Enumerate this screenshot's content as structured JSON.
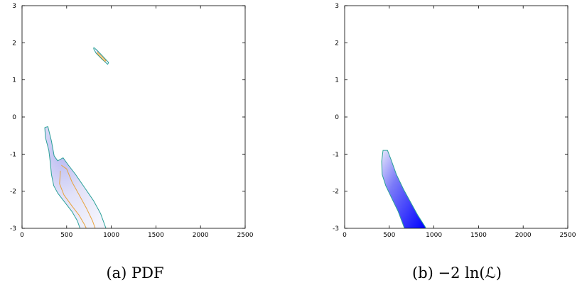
{
  "chart_data": [
    {
      "type": "heatmap",
      "caption": "(a) PDF",
      "xlim": [
        0,
        2500
      ],
      "ylim": [
        -3,
        3
      ],
      "xticks": [
        "0",
        "500",
        "1000",
        "1500",
        "2000",
        "2500"
      ],
      "yticks": [
        "-3",
        "-2",
        "-1",
        "0",
        "1",
        "2",
        "3"
      ],
      "xlabel": "",
      "ylabel": "",
      "regions": [
        {
          "name": "",
          "fill": "#dcdcf6",
          "contours": [
            {
              "color": "#2aa198",
              "points": [
                [
                  255,
                  -0.28
                ],
                [
                  290,
                  -0.26
                ],
                [
                  330,
                  -0.65
                ],
                [
                  360,
                  -1.05
                ],
                [
                  400,
                  -1.18
                ],
                [
                  460,
                  -1.1
                ],
                [
                  520,
                  -1.3
                ],
                [
                  600,
                  -1.55
                ],
                [
                  700,
                  -1.9
                ],
                [
                  800,
                  -2.25
                ],
                [
                  880,
                  -2.6
                ],
                [
                  940,
                  -3.0
                ]
              ]
            },
            {
              "color": "#2aa198",
              "points": [
                [
                  255,
                  -0.28
                ],
                [
                  262,
                  -0.55
                ],
                [
                  300,
                  -0.9
                ],
                [
                  318,
                  -1.25
                ],
                [
                  330,
                  -1.55
                ],
                [
                  355,
                  -1.85
                ],
                [
                  400,
                  -2.05
                ],
                [
                  480,
                  -2.3
                ],
                [
                  560,
                  -2.55
                ],
                [
                  620,
                  -2.8
                ],
                [
                  650,
                  -3.0
                ]
              ]
            },
            {
              "color": "#e8a33c",
              "points": [
                [
                  440,
                  -1.3
                ],
                [
                  500,
                  -1.4
                ],
                [
                  560,
                  -1.75
                ],
                [
                  640,
                  -2.1
                ],
                [
                  720,
                  -2.45
                ],
                [
                  790,
                  -2.8
                ],
                [
                  820,
                  -3.0
                ]
              ]
            },
            {
              "color": "#e8a33c",
              "points": [
                [
                  430,
                  -1.45
                ],
                [
                  420,
                  -1.8
                ],
                [
                  470,
                  -2.1
                ],
                [
                  560,
                  -2.4
                ],
                [
                  640,
                  -2.65
                ],
                [
                  700,
                  -2.9
                ],
                [
                  720,
                  -3.0
                ]
              ]
            }
          ]
        },
        {
          "name": "",
          "fill": "#dcdcf6",
          "contours": [
            {
              "color": "#2aa198",
              "points": [
                [
                  800,
                  1.88
                ],
                [
                  840,
                  1.8
                ],
                [
                  900,
                  1.65
                ],
                [
                  970,
                  1.47
                ],
                [
                  960,
                  1.42
                ],
                [
                  900,
                  1.55
                ],
                [
                  830,
                  1.72
                ],
                [
                  800,
                  1.85
                ]
              ]
            },
            {
              "color": "#e8a33c",
              "points": [
                [
                  840,
                  1.76
                ],
                [
                  890,
                  1.64
                ],
                [
                  940,
                  1.52
                ],
                [
                  930,
                  1.5
                ],
                [
                  880,
                  1.62
                ],
                [
                  840,
                  1.72
                ]
              ]
            }
          ]
        }
      ]
    },
    {
      "type": "heatmap",
      "caption": "(b) −2 ln(ℒ)",
      "xlim": [
        0,
        2500
      ],
      "ylim": [
        -3,
        3
      ],
      "xticks": [
        "0",
        "500",
        "1000",
        "1500",
        "2000",
        "2500"
      ],
      "yticks": [
        "-3",
        "-2",
        "-1",
        "0",
        "1",
        "2",
        "3"
      ],
      "xlabel": "",
      "ylabel": "",
      "regions": [
        {
          "name": "",
          "fill_gradient": [
            "#e6e6fb",
            "#0000ff"
          ],
          "outline_color": "#2aa198",
          "outline": [
            [
              430,
              -0.9
            ],
            [
              480,
              -0.9
            ],
            [
              520,
              -1.15
            ],
            [
              580,
              -1.55
            ],
            [
              660,
              -1.95
            ],
            [
              740,
              -2.3
            ],
            [
              820,
              -2.65
            ],
            [
              900,
              -2.95
            ],
            [
              910,
              -3.0
            ],
            [
              670,
              -3.0
            ],
            [
              600,
              -2.55
            ],
            [
              520,
              -2.15
            ],
            [
              460,
              -1.85
            ],
            [
              420,
              -1.55
            ],
            [
              415,
              -1.2
            ]
          ]
        }
      ]
    }
  ]
}
